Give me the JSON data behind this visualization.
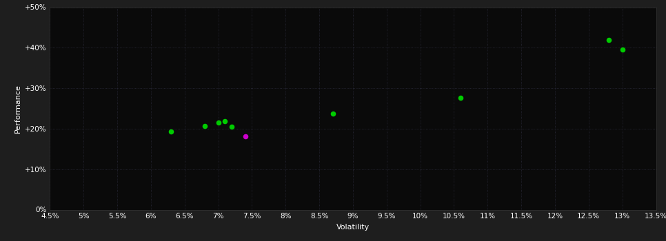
{
  "title": "",
  "xlabel": "Volatility",
  "ylabel": "Performance",
  "outer_bg": "#1e1e1e",
  "plot_bg": "#0a0a0a",
  "text_color": "#ffffff",
  "grid_color": "#2a2a3a",
  "xlim": [
    0.045,
    0.135
  ],
  "ylim": [
    0.0,
    0.5
  ],
  "xticks": [
    0.045,
    0.05,
    0.055,
    0.06,
    0.065,
    0.07,
    0.075,
    0.08,
    0.085,
    0.09,
    0.095,
    0.1,
    0.105,
    0.11,
    0.115,
    0.12,
    0.125,
    0.13,
    0.135
  ],
  "yticks": [
    0.0,
    0.1,
    0.2,
    0.3,
    0.4,
    0.5
  ],
  "xtick_labels": [
    "4.5%",
    "5%",
    "5.5%",
    "6%",
    "6.5%",
    "7%",
    "7.5%",
    "8%",
    "8.5%",
    "9%",
    "9.5%",
    "10%",
    "10.5%",
    "11%",
    "11.5%",
    "12%",
    "12.5%",
    "13%",
    "13.5%"
  ],
  "ytick_labels": [
    "0%",
    "+10%",
    "+20%",
    "+30%",
    "+40%",
    "+50%"
  ],
  "green_points": [
    [
      0.063,
      0.193
    ],
    [
      0.068,
      0.207
    ],
    [
      0.07,
      0.215
    ],
    [
      0.071,
      0.218
    ],
    [
      0.072,
      0.205
    ],
    [
      0.087,
      0.237
    ],
    [
      0.106,
      0.277
    ],
    [
      0.128,
      0.42
    ],
    [
      0.13,
      0.395
    ]
  ],
  "magenta_points": [
    [
      0.074,
      0.181
    ]
  ],
  "point_size": 30,
  "xlabel_fontsize": 8,
  "ylabel_fontsize": 8,
  "tick_fontsize": 7.5
}
